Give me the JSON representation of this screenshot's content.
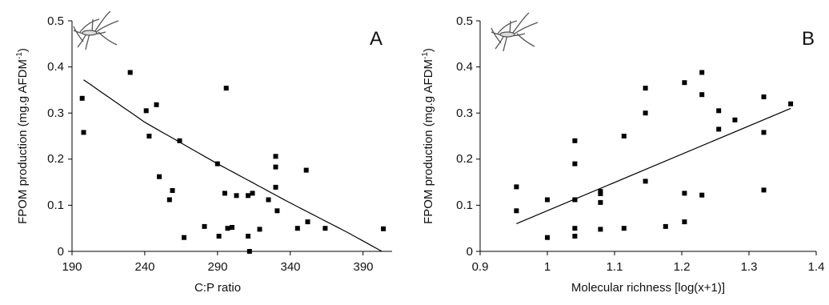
{
  "chart_data": [
    {
      "type": "scatter",
      "panel_label": "A",
      "xlabel": "C:P ratio",
      "ylabel": "FPOM production (mg.g AFDM-1)",
      "ylabel_main": "FPOM production (mg.g AFDM",
      "ylabel_sup": "-1",
      "ylabel_close": ")",
      "xlim": [
        190,
        410
      ],
      "ylim": [
        0,
        0.5
      ],
      "xticks": [
        190,
        240,
        290,
        340,
        390
      ],
      "yticks": [
        0,
        0.1,
        0.2,
        0.3,
        0.4,
        0.5
      ],
      "fit": {
        "type": "curve",
        "x": [
          198,
          240,
          290,
          340,
          380,
          403
        ],
        "y": [
          0.372,
          0.28,
          0.19,
          0.105,
          0.04,
          0.0
        ]
      },
      "x": [
        197,
        198,
        230,
        241,
        243,
        248,
        250,
        257,
        259,
        264,
        267,
        281,
        290,
        291,
        295,
        296,
        297,
        300,
        303,
        311,
        311,
        312,
        314,
        319,
        325,
        330,
        330,
        330,
        331,
        345,
        351,
        352,
        364,
        404
      ],
      "y": [
        0.332,
        0.258,
        0.388,
        0.305,
        0.25,
        0.318,
        0.162,
        0.112,
        0.132,
        0.24,
        0.03,
        0.054,
        0.19,
        0.033,
        0.126,
        0.354,
        0.05,
        0.052,
        0.121,
        0.033,
        0.121,
        0.0,
        0.126,
        0.048,
        0.112,
        0.206,
        0.183,
        0.139,
        0.088,
        0.05,
        0.176,
        0.064,
        0.05,
        0.049
      ]
    },
    {
      "type": "scatter",
      "panel_label": "B",
      "xlabel": "Molecular richness [log(x+1)]",
      "ylabel": "FPOM production (mg.g AFDM-1)",
      "ylabel_main": "FPOM production (mg.g AFDM",
      "ylabel_sup": "-1",
      "ylabel_close": ")",
      "xlim": [
        0.9,
        1.4
      ],
      "ylim": [
        0,
        0.5
      ],
      "xticks": [
        0.9,
        1.0,
        1.1,
        1.2,
        1.3,
        1.4
      ],
      "yticks": [
        0,
        0.1,
        0.2,
        0.3,
        0.4,
        0.5
      ],
      "fit": {
        "type": "line",
        "x": [
          0.954,
          1.362
        ],
        "y": [
          0.06,
          0.31
        ]
      },
      "x": [
        0.954,
        0.954,
        1.0,
        1.0,
        1.041,
        1.041,
        1.041,
        1.041,
        1.041,
        1.041,
        1.079,
        1.079,
        1.079,
        1.079,
        1.114,
        1.114,
        1.146,
        1.146,
        1.146,
        1.176,
        1.204,
        1.204,
        1.204,
        1.23,
        1.23,
        1.23,
        1.255,
        1.255,
        1.279,
        1.322,
        1.322,
        1.322,
        1.362
      ],
      "y": [
        0.14,
        0.088,
        0.112,
        0.03,
        0.24,
        0.19,
        0.112,
        0.05,
        0.033,
        0.112,
        0.13,
        0.125,
        0.106,
        0.048,
        0.25,
        0.05,
        0.354,
        0.3,
        0.152,
        0.054,
        0.366,
        0.126,
        0.064,
        0.388,
        0.34,
        0.122,
        0.305,
        0.265,
        0.285,
        0.335,
        0.258,
        0.133,
        0.32
      ]
    }
  ]
}
